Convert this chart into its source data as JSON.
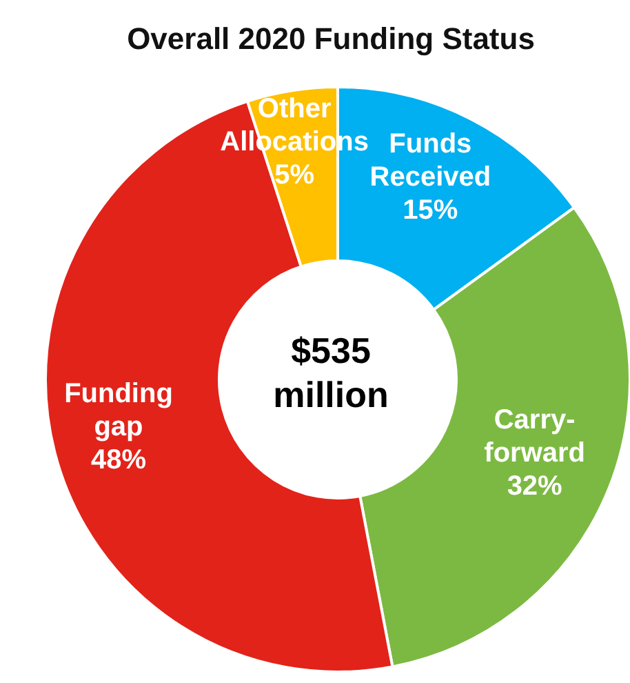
{
  "chart_data": {
    "type": "donut",
    "title": "Overall 2020 Funding Status",
    "categories": [
      "Funds Received",
      "Carry-forward",
      "Funding gap",
      "Other Allocations"
    ],
    "values": [
      15,
      32,
      48,
      5
    ],
    "colors": [
      "#00b0f0",
      "#7cb942",
      "#e2231a",
      "#ffc000"
    ],
    "value_labels": [
      "15%",
      "32%",
      "48%",
      "5%"
    ],
    "annotations": [
      "$535 million"
    ],
    "legend": false
  }
}
